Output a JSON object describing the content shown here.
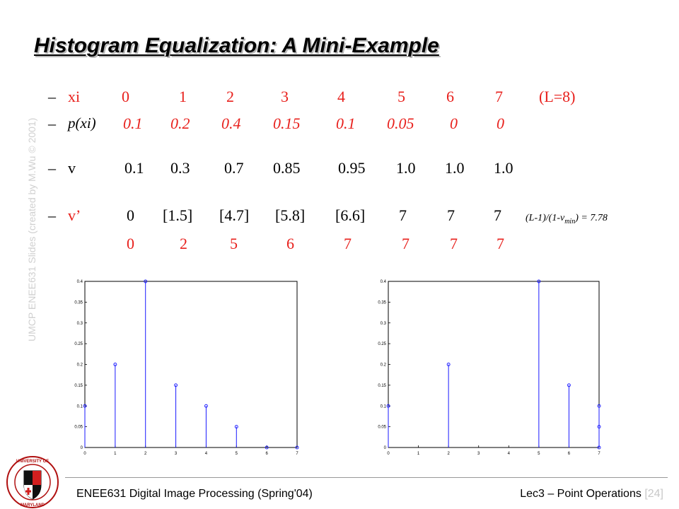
{
  "title": "Histogram Equalization: A Mini-Example",
  "watermark": "UMCP ENEE631 Slides (created by M.Wu © 2001)",
  "rows": {
    "xi": {
      "bullet": "–",
      "label": "xi",
      "values": [
        "0",
        "1",
        "2",
        "3",
        "4",
        "5",
        "6",
        "7"
      ],
      "note": "(L=8)"
    },
    "pxi": {
      "bullet": "–",
      "label": "p(xi)",
      "values": [
        "0.1",
        "0.2",
        "0.4",
        "0.15",
        "0.1",
        "0.05",
        "0",
        "0"
      ]
    },
    "v": {
      "bullet": "–",
      "label": "v",
      "values": [
        "0.1",
        "0.3",
        "0.7",
        "0.85",
        "0.95",
        "1.0",
        "1.0",
        "1.0"
      ]
    },
    "vprime": {
      "bullet": "–",
      "label": "v’",
      "values": [
        "0",
        "[1.5]",
        "[4.7]",
        "[5.8]",
        "[6.6]",
        "7",
        "7",
        "7"
      ],
      "formula_pre": "(L-1)/(1-v",
      "formula_sub": "min",
      "formula_post": ") = 7.78"
    },
    "rounded": {
      "values": [
        "0",
        "2",
        "5",
        "6",
        "7",
        "7",
        "7",
        "7"
      ]
    }
  },
  "chart_data": [
    {
      "type": "stem",
      "x": [
        0,
        1,
        2,
        3,
        4,
        5,
        6,
        7
      ],
      "values": [
        0.1,
        0.2,
        0.4,
        0.15,
        0.1,
        0.05,
        0,
        0
      ],
      "xlim": [
        0,
        7
      ],
      "ylim": [
        0,
        0.4
      ],
      "xticks": [
        "0",
        "1",
        "2",
        "3",
        "4",
        "5",
        "6",
        "7"
      ],
      "yticks": [
        "0",
        "0.05",
        "0.1",
        "0.15",
        "0.2",
        "0.25",
        "0.3",
        "0.35",
        "0.4"
      ],
      "color": "#1a1aff"
    },
    {
      "type": "stem",
      "x": [
        0,
        2,
        5,
        6,
        7,
        7,
        7
      ],
      "values": [
        0.1,
        0.2,
        0.4,
        0.15,
        0.1,
        0.05,
        0
      ],
      "xlim": [
        0,
        7
      ],
      "ylim": [
        0,
        0.4
      ],
      "xticks": [
        "0",
        "1",
        "2",
        "3",
        "4",
        "5",
        "6",
        "7"
      ],
      "yticks": [
        "0",
        "0.05",
        "0.1",
        "0.15",
        "0.2",
        "0.25",
        "0.3",
        "0.35",
        "0.4"
      ],
      "color": "#1a1aff"
    }
  ],
  "footer": {
    "left": "ENEE631 Digital Image Processing (Spring'04)",
    "right": "Lec3 – Point Operations",
    "page": "[24]"
  },
  "logo": {
    "text": "UNIVERSITY OF MARYLAND"
  }
}
